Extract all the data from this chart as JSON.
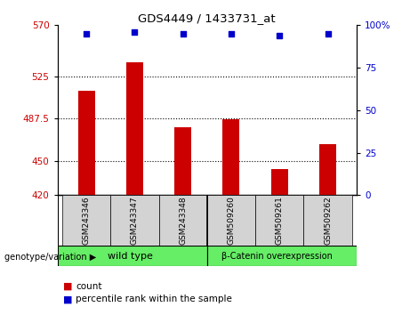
{
  "title": "GDS4449 / 1433731_at",
  "samples": [
    "GSM243346",
    "GSM243347",
    "GSM243348",
    "GSM509260",
    "GSM509261",
    "GSM509262"
  ],
  "counts": [
    512,
    537,
    480,
    487,
    443,
    465
  ],
  "percentiles": [
    95,
    96,
    95,
    95,
    94,
    95
  ],
  "ylim_left": [
    420,
    570
  ],
  "ylim_right": [
    0,
    100
  ],
  "yticks_left": [
    420,
    450,
    487.5,
    525,
    570
  ],
  "ytick_labels_left": [
    "420",
    "450",
    "487.5",
    "525",
    "570"
  ],
  "yticks_right": [
    0,
    25,
    50,
    75,
    100
  ],
  "ytick_labels_right": [
    "0",
    "25",
    "50",
    "75",
    "100%"
  ],
  "bar_color": "#cc0000",
  "scatter_color": "#0000cc",
  "bar_bottom": 420,
  "group1_label": "wild type",
  "group2_label": "β-Catenin overexpression",
  "group_color": "#66ee66",
  "genotype_label": "genotype/variation",
  "legend_count_label": "count",
  "legend_percentile_label": "percentile rank within the sample",
  "tick_label_color_left": "#cc0000",
  "tick_label_color_right": "#0000cc",
  "background_color": "#ffffff"
}
